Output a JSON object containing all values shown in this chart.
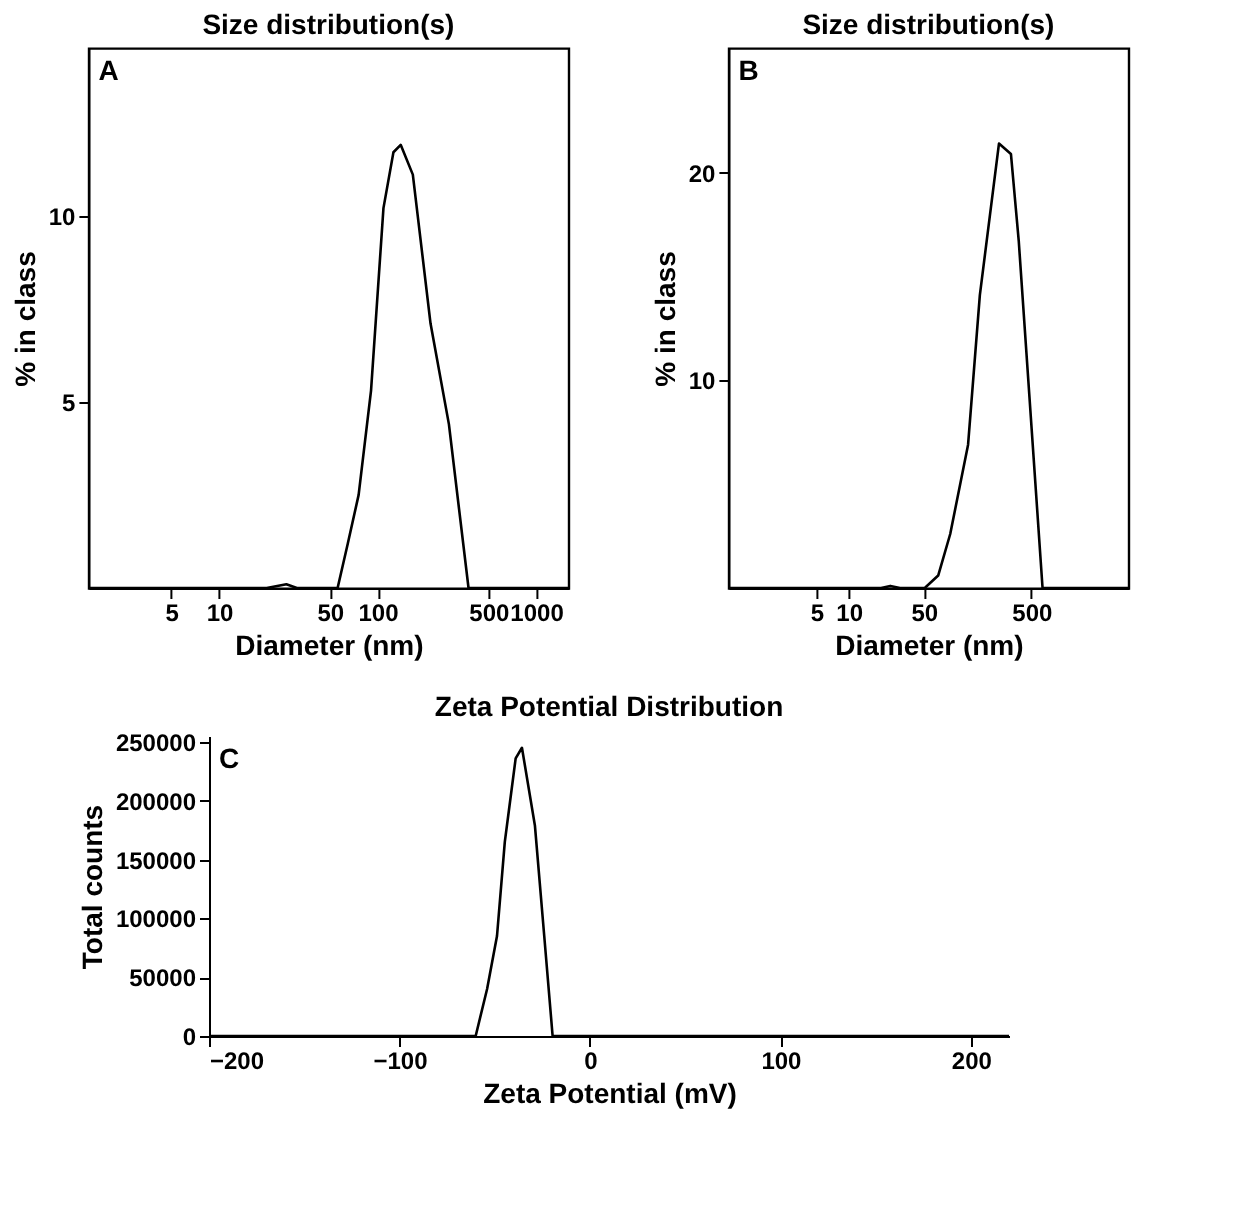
{
  "chart_data": [
    {
      "type": "line",
      "title": "Size distribution(s)",
      "xlabel": "Diameter (nm)",
      "ylabel": "% in class",
      "annotations": [
        "A"
      ],
      "log": "x",
      "marker": "none",
      "line_style": "solid",
      "x": [
        1.5,
        20,
        26.6,
        31,
        56,
        65,
        76,
        91,
        109,
        126,
        140,
        167,
        216,
        282,
        375,
        1600
      ],
      "series": [
        {
          "color": "#000000",
          "values": [
            0,
            0,
            0.1,
            0,
            0,
            1.2,
            2.5,
            5.3,
            10.2,
            11.7,
            11.9,
            11.1,
            7.1,
            4.4,
            0,
            0
          ]
        }
      ],
      "xlim": [
        1.5,
        1600
      ],
      "xticks": [
        5,
        10,
        50,
        100,
        500,
        1000
      ],
      "ylim": [
        0,
        14.5
      ],
      "yticks": [
        5,
        10
      ]
    },
    {
      "type": "line",
      "title": "Size distribution(s)",
      "xlabel": "Diameter (nm)",
      "ylabel": "% in class",
      "annotations": [
        "B"
      ],
      "log": "x",
      "marker": "none",
      "line_style": "solid",
      "x": [
        0.76,
        20,
        24.4,
        30,
        51,
        68,
        88,
        129,
        166,
        250,
        323,
        382,
        636,
        4000
      ],
      "series": [
        {
          "color": "#000000",
          "values": [
            0,
            0,
            0.1,
            0,
            0,
            0.6,
            2.6,
            6.9,
            14.1,
            21.4,
            20.9,
            16.7,
            0,
            0
          ]
        }
      ],
      "xlim": [
        0.76,
        4000
      ],
      "xticks": [
        5,
        10,
        50,
        500
      ],
      "ylim": [
        0,
        26
      ],
      "yticks": [
        10,
        20
      ]
    },
    {
      "type": "line",
      "title": "Zeta Potential Distribution",
      "xlabel": "Zeta Potential (mV)",
      "ylabel": "Total counts",
      "annotations": [
        "C"
      ],
      "marker": "none",
      "line_style": "solid",
      "x": [
        -200,
        -60,
        -54,
        -48.8,
        -44.7,
        -39,
        -35.7,
        -28.9,
        -24,
        -19.6,
        220
      ],
      "series": [
        {
          "color": "#000000",
          "values": [
            0,
            0,
            40000,
            85000,
            165000,
            236000,
            245000,
            179000,
            85000,
            0,
            0
          ]
        }
      ],
      "xlim": [
        -200,
        220
      ],
      "xticks": [
        -200,
        -100,
        0,
        100,
        200
      ],
      "ylim": [
        0,
        255000
      ],
      "yticks": [
        0,
        50000,
        100000,
        150000,
        200000,
        250000
      ]
    }
  ]
}
